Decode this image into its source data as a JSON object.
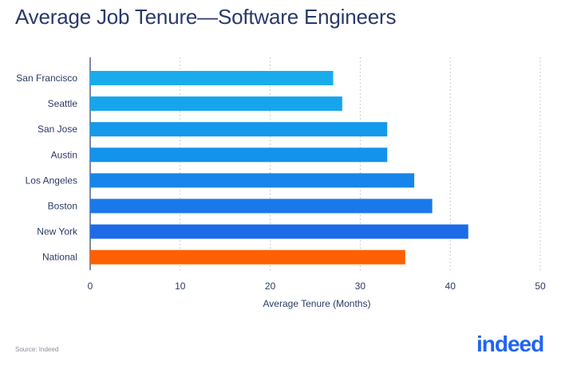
{
  "header": {
    "title": "Average Job Tenure—Software Engineers"
  },
  "footer": {
    "source": "Source: Indeed",
    "logo_text": "indeed"
  },
  "chart_data": {
    "type": "bar",
    "orientation": "horizontal",
    "title": "Average Job Tenure—Software Engineers",
    "xlabel": "Average Tenure (Months)",
    "ylabel": "",
    "xlim": [
      0,
      50
    ],
    "xticks": [
      0,
      10,
      20,
      30,
      40,
      50
    ],
    "grid": "vertical dotted",
    "categories": [
      "San Francisco",
      "Seattle",
      "San Jose",
      "Austin",
      "Los Angeles",
      "Boston",
      "New York",
      "National"
    ],
    "values": [
      27,
      28,
      33,
      33,
      36,
      38,
      42,
      35
    ],
    "colors": [
      "#18aced",
      "#16a5ec",
      "#1499eb",
      "#1393ea",
      "#1786ea",
      "#1a78ea",
      "#1e6be8",
      "#ff6000"
    ]
  }
}
